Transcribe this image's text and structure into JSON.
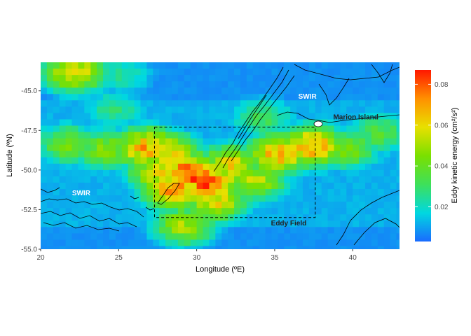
{
  "chart_data": {
    "type": "heatmap",
    "xlabel": "Longitude (ºE)",
    "ylabel": "Latitude (ºN)",
    "xlim": [
      20,
      43
    ],
    "ylim": [
      -55,
      -43.2
    ],
    "x_ticks": [
      "20",
      "25",
      "30",
      "35",
      "40"
    ],
    "x_tick_values": [
      20,
      25,
      30,
      35,
      40
    ],
    "y_ticks": [
      "-55.0",
      "-52.5",
      "-50.0",
      "-47.5",
      "-45.0"
    ],
    "y_tick_values": [
      -55,
      -52.5,
      -50,
      -47.5,
      -45
    ],
    "colorbar": {
      "title": "Eddy kinetic energy (cm²/s²)",
      "range": [
        0.003,
        0.087
      ],
      "ticks": [
        "0.02",
        "0.04",
        "0.06",
        "0.08"
      ],
      "tick_values": [
        0.02,
        0.04,
        0.06,
        0.08
      ],
      "colors": [
        "#1a6bff",
        "#00d8e0",
        "#3ee05a",
        "#7ae000",
        "#e8e000",
        "#ff9000",
        "#ff1800"
      ]
    },
    "box": {
      "label": "Eddy Field",
      "lon": [
        27.3,
        37.6
      ],
      "lat": [
        -53.0,
        -47.3
      ]
    },
    "labels": [
      {
        "text": "SWIR",
        "lon": 37.1,
        "lat": -45.5,
        "color": "#ffffff"
      },
      {
        "text": "Marion Island",
        "lon": 40.2,
        "lat": -46.8,
        "color": "#222222"
      },
      {
        "text": "SWIR",
        "lon": 22.6,
        "lat": -51.6,
        "color": "#ffffff"
      },
      {
        "text": "Eddy Field",
        "lon": 35.9,
        "lat": -53.5,
        "color": "#222222"
      }
    ],
    "hotspots": [
      {
        "lon": 29.4,
        "lat": -50.1,
        "value": 0.085
      },
      {
        "lon": 30.5,
        "lat": -50.6,
        "value": 0.08
      },
      {
        "lon": 28.4,
        "lat": -51.0,
        "value": 0.075
      },
      {
        "lon": 26.6,
        "lat": -48.4,
        "value": 0.068
      },
      {
        "lon": 28.0,
        "lat": -48.8,
        "value": 0.064
      },
      {
        "lon": 35.0,
        "lat": -48.8,
        "value": 0.068
      },
      {
        "lon": 37.2,
        "lat": -48.3,
        "value": 0.07
      },
      {
        "lon": 32.0,
        "lat": -49.5,
        "value": 0.06
      },
      {
        "lon": 31.0,
        "lat": -51.8,
        "value": 0.058
      },
      {
        "lon": 33.5,
        "lat": -50.5,
        "value": 0.052
      },
      {
        "lon": 24.0,
        "lat": -48.5,
        "value": 0.045
      },
      {
        "lon": 21.5,
        "lat": -48.2,
        "value": 0.042
      },
      {
        "lon": 29.0,
        "lat": -53.3,
        "value": 0.05
      },
      {
        "lon": 39.5,
        "lat": -48.5,
        "value": 0.042
      },
      {
        "lon": 41.5,
        "lat": -47.5,
        "value": 0.035
      },
      {
        "lon": 34.0,
        "lat": -46.5,
        "value": 0.032
      },
      {
        "lon": 24.5,
        "lat": -46.0,
        "value": 0.028
      },
      {
        "lon": 22.0,
        "lat": -43.6,
        "value": 0.06
      },
      {
        "lon": 25.0,
        "lat": -43.8,
        "value": 0.025
      },
      {
        "lon": 27.5,
        "lat": -50.0,
        "value": 0.06
      }
    ]
  }
}
